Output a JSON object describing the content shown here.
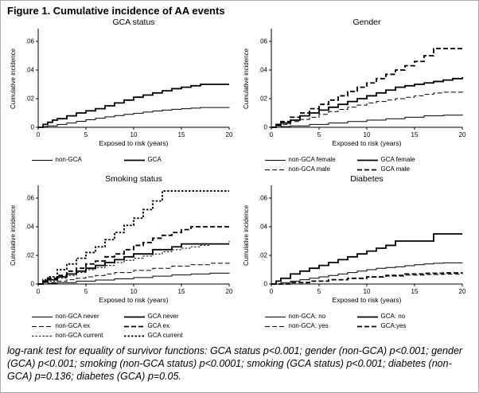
{
  "figure_title": "Figure 1. Cumulative incidence of AA events",
  "caption": "log-rank test for equality of survivor functions: GCA status p<0.001; gender (non-GCA) p<0.001; gender (GCA) p<0.001; smoking (non-GCA status) p<0.0001; smoking (GCA status) p<0.001; diabetes (non-GCA) p=0.136; diabetes (GCA) p=0.05.",
  "chart_data": [
    {
      "type": "line",
      "title": "GCA status",
      "xlabel": "Exposed to risk (years)",
      "ylabel": "Cumulative incidence",
      "xlim": [
        0,
        20
      ],
      "ylim": [
        0,
        0.06
      ],
      "xticks": [
        0,
        5,
        10,
        15,
        20
      ],
      "yticks": [
        0,
        0.02,
        0.04,
        0.06
      ],
      "ytick_labels": [
        "0",
        ".02",
        ".04",
        ".06"
      ],
      "grid": false,
      "legend_position": "bottom",
      "legend_rows": [
        [
          0,
          1
        ]
      ],
      "series": [
        {
          "name": "non-GCA",
          "style": "solid",
          "width": 1,
          "x": [
            0,
            0.5,
            1,
            2,
            3,
            4,
            5,
            6,
            7,
            8,
            9,
            10,
            11,
            12,
            13,
            14,
            15,
            16,
            17,
            20
          ],
          "y": [
            0,
            0.0005,
            0.001,
            0.002,
            0.003,
            0.0042,
            0.0053,
            0.0063,
            0.0073,
            0.0082,
            0.009,
            0.0098,
            0.0106,
            0.0114,
            0.012,
            0.0126,
            0.013,
            0.0134,
            0.0138,
            0.014
          ]
        },
        {
          "name": "GCA",
          "style": "solid",
          "width": 1.8,
          "x": [
            0,
            0.5,
            1,
            1.5,
            2,
            3,
            4,
            5,
            6,
            7,
            8,
            9,
            10,
            11,
            12,
            13,
            14,
            15,
            16,
            17,
            20
          ],
          "y": [
            0,
            0.002,
            0.0035,
            0.005,
            0.006,
            0.008,
            0.01,
            0.0115,
            0.013,
            0.015,
            0.017,
            0.019,
            0.021,
            0.0225,
            0.024,
            0.0255,
            0.027,
            0.028,
            0.029,
            0.03,
            0.03
          ]
        }
      ]
    },
    {
      "type": "line",
      "title": "Gender",
      "xlabel": "Exposed to risk (years)",
      "ylabel": "Cumulative incidence",
      "xlim": [
        0,
        20
      ],
      "ylim": [
        0,
        0.06
      ],
      "xticks": [
        0,
        5,
        10,
        15,
        20
      ],
      "yticks": [
        0,
        0.02,
        0.04,
        0.06
      ],
      "ytick_labels": [
        "0",
        ".02",
        ".04",
        ".06"
      ],
      "grid": false,
      "legend_position": "bottom",
      "legend_rows": [
        [
          0,
          2
        ],
        [
          1,
          3
        ]
      ],
      "series": [
        {
          "name": "non-GCA female",
          "style": "solid",
          "width": 1,
          "x": [
            0,
            1,
            2,
            4,
            6,
            8,
            10,
            12,
            14,
            16,
            18,
            20
          ],
          "y": [
            0,
            0.0005,
            0.001,
            0.002,
            0.003,
            0.004,
            0.005,
            0.006,
            0.007,
            0.008,
            0.0085,
            0.009
          ]
        },
        {
          "name": "non-GCA male",
          "style": "dash",
          "width": 1,
          "x": [
            0,
            0.5,
            1,
            2,
            3,
            4,
            5,
            6,
            7,
            8,
            9,
            10,
            11,
            12,
            13,
            14,
            15,
            16,
            17,
            18,
            20
          ],
          "y": [
            0,
            0.001,
            0.002,
            0.004,
            0.0055,
            0.007,
            0.009,
            0.011,
            0.0125,
            0.014,
            0.0155,
            0.017,
            0.018,
            0.019,
            0.02,
            0.021,
            0.022,
            0.023,
            0.024,
            0.0245,
            0.025
          ]
        },
        {
          "name": "GCA female",
          "style": "solid",
          "width": 1.8,
          "x": [
            0,
            0.5,
            1,
            2,
            3,
            4,
            5,
            6,
            7,
            8,
            9,
            10,
            11,
            12,
            13,
            14,
            15,
            16,
            17,
            18,
            19,
            20
          ],
          "y": [
            0,
            0.0015,
            0.003,
            0.005,
            0.008,
            0.01,
            0.012,
            0.014,
            0.016,
            0.018,
            0.02,
            0.022,
            0.024,
            0.026,
            0.028,
            0.029,
            0.03,
            0.031,
            0.032,
            0.033,
            0.034,
            0.035
          ]
        },
        {
          "name": "GCA male",
          "style": "dash",
          "width": 1.8,
          "x": [
            0,
            0.5,
            1,
            2,
            3,
            4,
            5,
            6,
            7,
            8,
            9,
            10,
            11,
            12,
            13,
            14,
            15,
            16,
            17,
            20
          ],
          "y": [
            0,
            0.002,
            0.004,
            0.007,
            0.01,
            0.013,
            0.016,
            0.019,
            0.022,
            0.025,
            0.028,
            0.031,
            0.034,
            0.037,
            0.04,
            0.043,
            0.046,
            0.05,
            0.055,
            0.055
          ]
        }
      ]
    },
    {
      "type": "line",
      "title": "Smoking status",
      "xlabel": "Exposed to risk (years)",
      "ylabel": "Cumulative incidence",
      "xlim": [
        0,
        20
      ],
      "ylim": [
        0,
        0.06
      ],
      "xticks": [
        0,
        5,
        10,
        15,
        20
      ],
      "yticks": [
        0,
        0.02,
        0.04,
        0.06
      ],
      "ytick_labels": [
        "0",
        ".02",
        ".04",
        ".06"
      ],
      "grid": false,
      "legend_position": "bottom",
      "legend_rows": [
        [
          0,
          3
        ],
        [
          1,
          4
        ],
        [
          2,
          5
        ]
      ],
      "series": [
        {
          "name": "non-GCA never",
          "style": "solid",
          "width": 1,
          "x": [
            0,
            1,
            2,
            4,
            6,
            8,
            10,
            12,
            14,
            16,
            18,
            20
          ],
          "y": [
            0,
            0.0005,
            0.001,
            0.002,
            0.0028,
            0.0036,
            0.0045,
            0.0055,
            0.0063,
            0.007,
            0.0076,
            0.008
          ]
        },
        {
          "name": "non-GCA ex",
          "style": "dash",
          "width": 1,
          "x": [
            0,
            1,
            2,
            3,
            4,
            5,
            6,
            7,
            8,
            10,
            12,
            14,
            16,
            18,
            20
          ],
          "y": [
            0,
            0.001,
            0.002,
            0.003,
            0.004,
            0.005,
            0.006,
            0.007,
            0.008,
            0.0095,
            0.011,
            0.0125,
            0.0135,
            0.0145,
            0.015
          ]
        },
        {
          "name": "non-GCA current",
          "style": "shortdash",
          "width": 1,
          "x": [
            0,
            0.5,
            1,
            2,
            3,
            4,
            5,
            6,
            7,
            8,
            9,
            10,
            11,
            12,
            13,
            14,
            15,
            16,
            17,
            18,
            20
          ],
          "y": [
            0,
            0.001,
            0.002,
            0.004,
            0.006,
            0.008,
            0.01,
            0.0115,
            0.013,
            0.015,
            0.0165,
            0.018,
            0.0195,
            0.021,
            0.0225,
            0.024,
            0.025,
            0.026,
            0.027,
            0.028,
            0.03
          ]
        },
        {
          "name": "GCA never",
          "style": "solid",
          "width": 1.8,
          "x": [
            0,
            0.5,
            1,
            2,
            3,
            4,
            5,
            6,
            7,
            8,
            9,
            10,
            12,
            14,
            15,
            20
          ],
          "y": [
            0,
            0.0015,
            0.003,
            0.005,
            0.007,
            0.009,
            0.011,
            0.013,
            0.015,
            0.017,
            0.019,
            0.021,
            0.024,
            0.026,
            0.028,
            0.028
          ]
        },
        {
          "name": "GCA ex",
          "style": "dash",
          "width": 1.8,
          "x": [
            0,
            0.5,
            1,
            2,
            3,
            4,
            5,
            6,
            7,
            8,
            9,
            10,
            11,
            12,
            13,
            14,
            15,
            16,
            20
          ],
          "y": [
            0,
            0.002,
            0.004,
            0.006,
            0.009,
            0.011,
            0.014,
            0.016,
            0.019,
            0.021,
            0.024,
            0.027,
            0.029,
            0.032,
            0.034,
            0.036,
            0.038,
            0.04,
            0.04
          ]
        },
        {
          "name": "GCA current",
          "style": "shortdash",
          "width": 1.8,
          "x": [
            0,
            0.5,
            1,
            2,
            3,
            4,
            5,
            6,
            7,
            8,
            9,
            10,
            11,
            12,
            13,
            20
          ],
          "y": [
            0,
            0.003,
            0.005,
            0.01,
            0.014,
            0.018,
            0.022,
            0.026,
            0.031,
            0.036,
            0.041,
            0.046,
            0.052,
            0.058,
            0.065,
            0.065
          ]
        }
      ]
    },
    {
      "type": "line",
      "title": "Diabetes",
      "xlabel": "Exposed to risk (years)",
      "ylabel": "Cumulative incidence",
      "xlim": [
        0,
        20
      ],
      "ylim": [
        0,
        0.06
      ],
      "xticks": [
        0,
        5,
        10,
        15,
        20
      ],
      "yticks": [
        0,
        0.02,
        0.04,
        0.06
      ],
      "ytick_labels": [
        "0",
        ".02",
        ".04",
        ".06"
      ],
      "grid": false,
      "legend_position": "bottom",
      "legend_rows": [
        [
          0,
          2
        ],
        [
          1,
          3
        ]
      ],
      "series": [
        {
          "name": "non-GCA: no",
          "style": "solid",
          "width": 1,
          "x": [
            0,
            1,
            2,
            3,
            4,
            5,
            6,
            7,
            8,
            9,
            10,
            11,
            12,
            13,
            14,
            15,
            16,
            17,
            18,
            20
          ],
          "y": [
            0,
            0.001,
            0.002,
            0.003,
            0.004,
            0.005,
            0.006,
            0.007,
            0.008,
            0.009,
            0.01,
            0.011,
            0.0115,
            0.012,
            0.0128,
            0.0135,
            0.014,
            0.0145,
            0.0148,
            0.015
          ]
        },
        {
          "name": "non-GCA: yes",
          "style": "dash",
          "width": 1,
          "x": [
            0,
            2,
            4,
            6,
            8,
            10,
            12,
            14,
            16,
            18,
            20
          ],
          "y": [
            0,
            0.001,
            0.002,
            0.003,
            0.0038,
            0.0047,
            0.0055,
            0.0062,
            0.0066,
            0.0069,
            0.007
          ]
        },
        {
          "name": "GCA: no",
          "style": "solid",
          "width": 1.8,
          "x": [
            0,
            0.5,
            1,
            2,
            3,
            4,
            5,
            6,
            7,
            8,
            9,
            10,
            11,
            12,
            13,
            15,
            17,
            20
          ],
          "y": [
            0,
            0.002,
            0.004,
            0.007,
            0.009,
            0.011,
            0.013,
            0.015,
            0.017,
            0.019,
            0.021,
            0.023,
            0.025,
            0.027,
            0.03,
            0.03,
            0.035,
            0.035
          ]
        },
        {
          "name": "GCA:yes",
          "style": "dash",
          "width": 1.8,
          "x": [
            0,
            2,
            4,
            6,
            8,
            10,
            12,
            14,
            16,
            18,
            20
          ],
          "y": [
            0,
            0.001,
            0.002,
            0.003,
            0.004,
            0.005,
            0.006,
            0.007,
            0.0075,
            0.0078,
            0.008
          ]
        }
      ]
    }
  ],
  "line_color": "#000000"
}
